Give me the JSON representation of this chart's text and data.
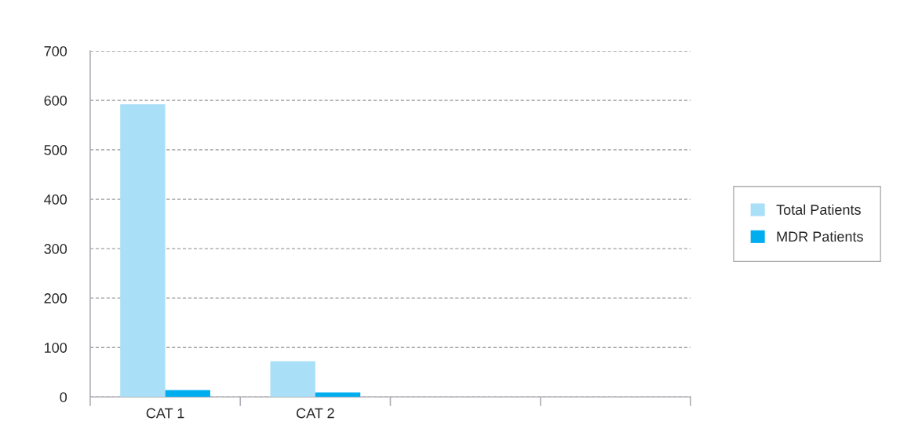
{
  "chart_data": {
    "type": "bar",
    "categories": [
      "CAT 1",
      "CAT 2",
      null,
      null
    ],
    "series": [
      {
        "name": "Total Patients",
        "color": "#aadff8",
        "values": [
          592,
          72,
          null,
          null
        ]
      },
      {
        "name": "MDR Patients",
        "color": "#00aeef",
        "values": [
          14,
          9,
          null,
          null
        ]
      }
    ],
    "ylim": [
      0,
      700
    ],
    "yticks": [
      0,
      100,
      200,
      300,
      400,
      500,
      600,
      700
    ],
    "grid": "y",
    "legend": "right"
  }
}
